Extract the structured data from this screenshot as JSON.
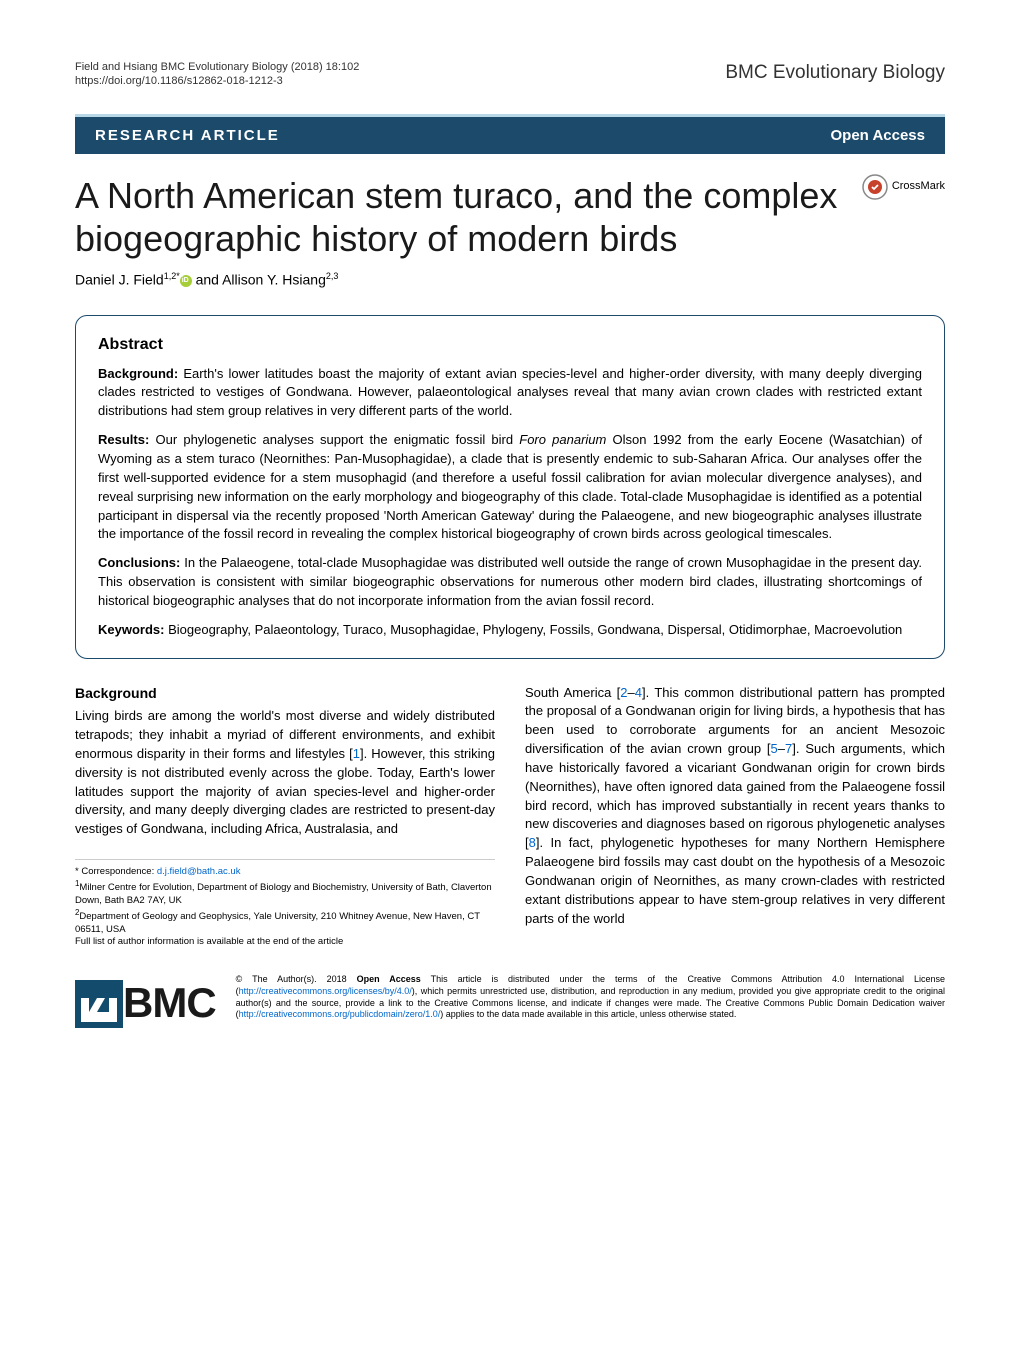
{
  "header": {
    "citation": "Field and Hsiang BMC Evolutionary Biology  (2018) 18:102",
    "doi": "https://doi.org/10.1186/s12862-018-1212-3",
    "journal": "BMC Evolutionary Biology"
  },
  "article_type_row": {
    "type": "RESEARCH ARTICLE",
    "access": "Open Access"
  },
  "crossmark_label": "CrossMark",
  "title": "A North American stem turaco, and the complex biogeographic history of modern birds",
  "authors_html": "Daniel J. Field<sup>1,2*</sup><span class=\"orcid\" data-name=\"orcid-icon\" data-interactable=\"false\"></span> and Allison Y. Hsiang<sup>2,3</sup>",
  "abstract": {
    "heading": "Abstract",
    "background_label": "Background:",
    "background": "Earth's lower latitudes boast the majority of extant avian species-level and higher-order diversity, with many deeply diverging clades restricted to vestiges of Gondwana. However, palaeontological analyses reveal that many avian crown clades with restricted extant distributions had stem group relatives in very different parts of the world.",
    "results_label": "Results:",
    "results": "Our phylogenetic analyses support the enigmatic fossil bird <span class=\"italic\">Foro panarium</span> Olson 1992 from the early Eocene (Wasatchian) of Wyoming as a stem turaco (Neornithes: Pan-Musophagidae), a clade that is presently endemic to sub-Saharan Africa. Our analyses offer the first well-supported evidence for a stem musophagid (and therefore a useful fossil calibration for avian molecular divergence analyses), and reveal surprising new information on the early morphology and biogeography of this clade. Total-clade Musophagidae is identified as a potential participant in dispersal via the recently proposed 'North American Gateway' during the Palaeogene, and new biogeographic analyses illustrate the importance of the fossil record in revealing the complex historical biogeography of crown birds across geological timescales.",
    "conclusions_label": "Conclusions:",
    "conclusions": "In the Palaeogene, total-clade Musophagidae was distributed well outside the range of crown Musophagidae in the present day. This observation is consistent with similar biogeographic observations for numerous other modern bird clades, illustrating shortcomings of historical biogeographic analyses that do not incorporate information from the avian fossil record.",
    "keywords_label": "Keywords:",
    "keywords": "Biogeography, Palaeontology, Turaco, Musophagidae, Phylogeny, Fossils, Gondwana, Dispersal, Otidimorphae, Macroevolution"
  },
  "body": {
    "background_heading": "Background",
    "col1": "Living birds are among the world's most diverse and widely distributed tetrapods; they inhabit a myriad of different environments, and exhibit enormous disparity in their forms and lifestyles [<span class=\"ref\">1</span>]. However, this striking diversity is not distributed evenly across the globe. Today, Earth's lower latitudes support the majority of avian species-level and higher-order diversity, and many deeply diverging clades are restricted to present-day vestiges of Gondwana, including Africa, Australasia, and",
    "col2": "South America [<span class=\"ref\">2</span>–<span class=\"ref\">4</span>]. This common distributional pattern has prompted the proposal of a Gondwanan origin for living birds, a hypothesis that has been used to corroborate arguments for an ancient Mesozoic diversification of the avian crown group [<span class=\"ref\">5</span>–<span class=\"ref\">7</span>]. Such arguments, which have historically favored a vicariant Gondwanan origin for crown birds (Neornithes), have often ignored data gained from the Palaeogene fossil bird record, which has improved substantially in recent years thanks to new discoveries and diagnoses based on rigorous phylogenetic analyses [<span class=\"ref\">8</span>]. In fact, phylogenetic hypotheses for many Northern Hemisphere Palaeogene bird fossils may cast doubt on the hypothesis of a Mesozoic Gondwanan origin of Neornithes, as many crown-clades with restricted extant distributions appear to have stem-group relatives in very different parts of the world"
  },
  "footnotes": {
    "corr_label": "* Correspondence: ",
    "corr_email": "d.j.field@bath.ac.uk",
    "aff1": "Milner Centre for Evolution, Department of Biology and Biochemistry, University of Bath, Claverton Down, Bath BA2 7AY, UK",
    "aff2": "Department of Geology and Geophysics, Yale University, 210 Whitney Avenue, New Haven, CT 06511, USA",
    "full_list": "Full list of author information is available at the end of the article"
  },
  "license": {
    "bmc": "BMC",
    "text": "© The Author(s). 2018 <b>Open Access</b> This article is distributed under the terms of the Creative Commons Attribution 4.0 International License (<a href=\"#\">http://creativecommons.org/licenses/by/4.0/</a>), which permits unrestricted use, distribution, and reproduction in any medium, provided you give appropriate credit to the original author(s) and the source, provide a link to the Creative Commons license, and indicate if changes were made. The Creative Commons Public Domain Dedication waiver (<a href=\"#\">http://creativecommons.org/publicdomain/zero/1.0/</a>) applies to the data made available in this article, unless otherwise stated."
  },
  "colors": {
    "header_bg": "#1b4a6b",
    "header_border": "#b8d8e8",
    "link": "#0066cc",
    "orcid": "#a6ce39"
  }
}
